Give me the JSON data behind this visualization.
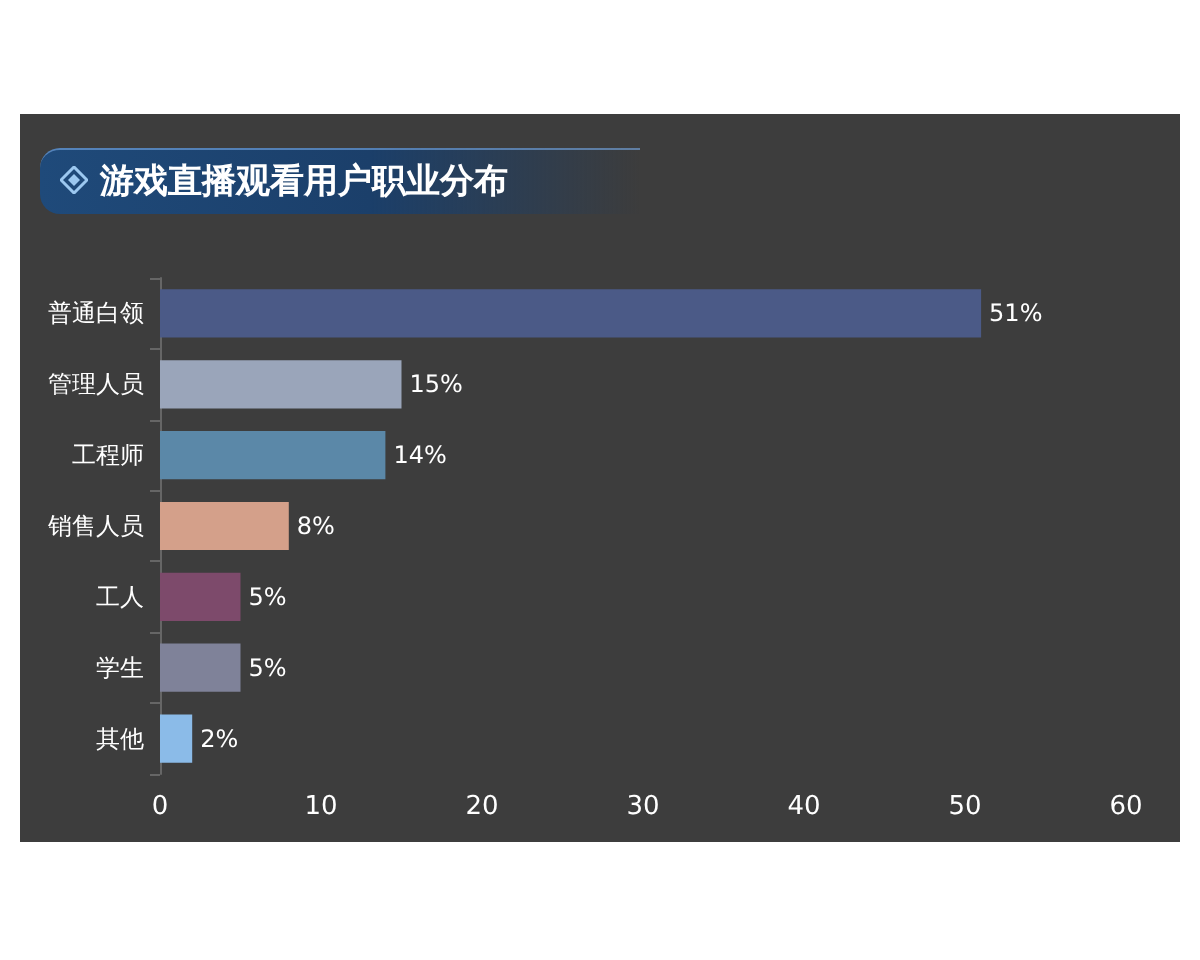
{
  "chart_data": {
    "type": "bar",
    "orientation": "horizontal",
    "title": "游戏直播观看用户职业分布",
    "categories": [
      "普通白领",
      "管理人员",
      "工程师",
      "销售人员",
      "工人",
      "学生",
      "其他"
    ],
    "values": [
      51,
      15,
      14,
      8,
      5,
      5,
      2
    ],
    "colors": [
      "#4b5a87",
      "#9aa5ba",
      "#5b88a8",
      "#d4a08a",
      "#7d4a6b",
      "#7f8299",
      "#8bbbe8"
    ],
    "value_labels": [
      "51%",
      "15%",
      "14%",
      "8%",
      "5%",
      "5%",
      "2%"
    ],
    "xlim": [
      0,
      60
    ],
    "xticks": [
      0,
      10,
      20,
      30,
      40,
      50,
      60
    ],
    "grid": false
  }
}
